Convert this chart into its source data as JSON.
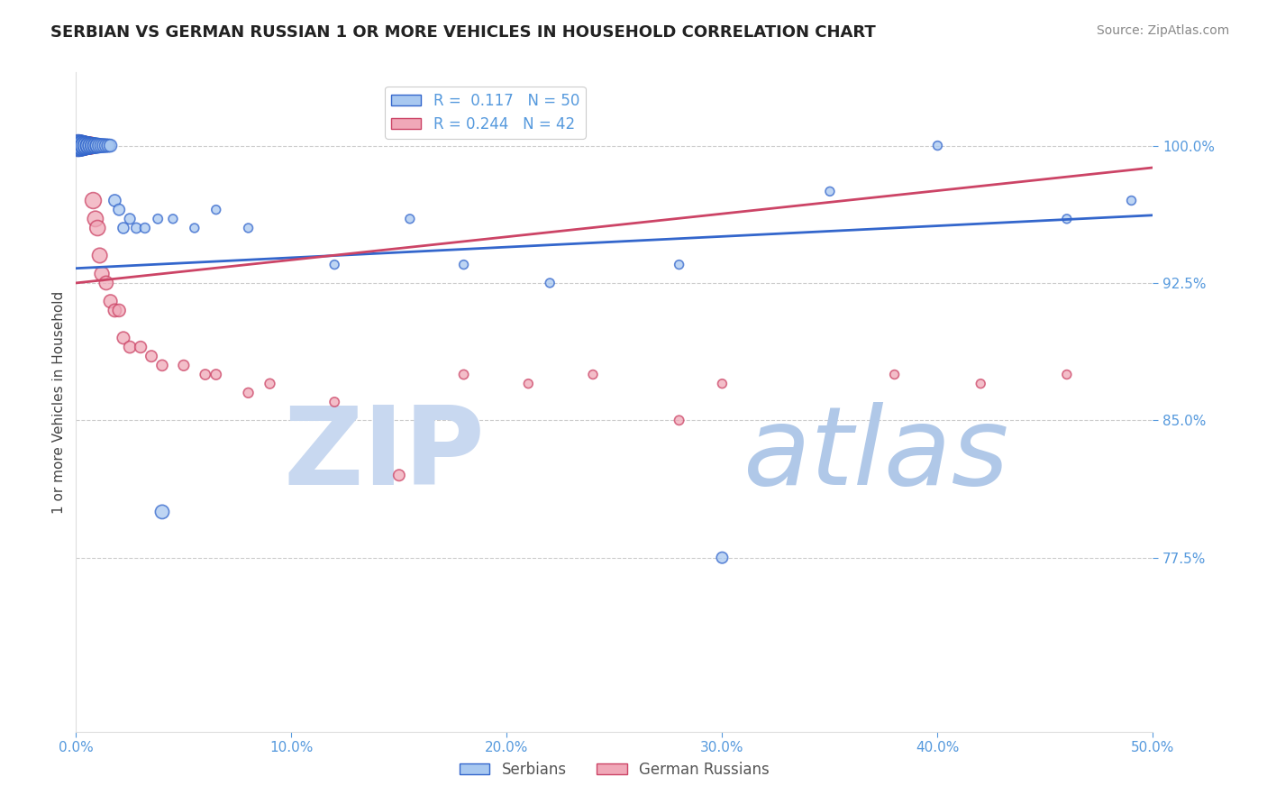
{
  "title": "SERBIAN VS GERMAN RUSSIAN 1 OR MORE VEHICLES IN HOUSEHOLD CORRELATION CHART",
  "source_text": "Source: ZipAtlas.com",
  "ylabel": "1 or more Vehicles in Household",
  "xlim": [
    0.0,
    0.5
  ],
  "ylim": [
    0.68,
    1.04
  ],
  "yticks": [
    0.775,
    0.85,
    0.925,
    1.0
  ],
  "ytick_labels": [
    "77.5%",
    "85.0%",
    "92.5%",
    "100.0%"
  ],
  "xticks": [
    0.0,
    0.1,
    0.2,
    0.3,
    0.4,
    0.5
  ],
  "xtick_labels": [
    "0.0%",
    "10.0%",
    "20.0%",
    "30.0%",
    "40.0%",
    "50.0%"
  ],
  "serbian_color": "#A8C8F0",
  "german_russian_color": "#F0A8B8",
  "trend_blue": "#3366CC",
  "trend_pink": "#CC4466",
  "background_color": "#FFFFFF",
  "grid_color": "#CCCCCC",
  "watermark_color": "#D8E8F8",
  "tick_color": "#5599DD",
  "title_fontsize": 13,
  "source_fontsize": 10,
  "label_fontsize": 11,
  "tick_fontsize": 11,
  "legend_fontsize": 12,
  "serbian_x": [
    0.001,
    0.002,
    0.002,
    0.003,
    0.003,
    0.003,
    0.004,
    0.004,
    0.004,
    0.005,
    0.005,
    0.006,
    0.006,
    0.006,
    0.007,
    0.007,
    0.008,
    0.008,
    0.009,
    0.009,
    0.01,
    0.01,
    0.011,
    0.012,
    0.013,
    0.014,
    0.015,
    0.016,
    0.018,
    0.02,
    0.022,
    0.025,
    0.028,
    0.032,
    0.038,
    0.045,
    0.055,
    0.065,
    0.08,
    0.12,
    0.155,
    0.18,
    0.22,
    0.28,
    0.35,
    0.4,
    0.46,
    0.49,
    0.3,
    0.04
  ],
  "serbian_y": [
    1.0,
    1.0,
    1.0,
    1.0,
    1.0,
    1.0,
    1.0,
    1.0,
    1.0,
    1.0,
    1.0,
    1.0,
    1.0,
    1.0,
    1.0,
    1.0,
    1.0,
    1.0,
    1.0,
    1.0,
    1.0,
    1.0,
    1.0,
    1.0,
    1.0,
    1.0,
    1.0,
    1.0,
    0.97,
    0.965,
    0.955,
    0.96,
    0.955,
    0.955,
    0.96,
    0.96,
    0.955,
    0.965,
    0.955,
    0.935,
    0.96,
    0.935,
    0.925,
    0.935,
    0.975,
    1.0,
    0.96,
    0.97,
    0.775,
    0.8
  ],
  "serbian_sizes": [
    300,
    280,
    260,
    250,
    240,
    230,
    220,
    210,
    200,
    200,
    190,
    180,
    175,
    170,
    165,
    160,
    155,
    150,
    145,
    140,
    135,
    130,
    125,
    120,
    115,
    110,
    105,
    100,
    90,
    80,
    75,
    70,
    65,
    60,
    55,
    50,
    50,
    50,
    50,
    50,
    50,
    50,
    50,
    50,
    50,
    50,
    50,
    50,
    80,
    120
  ],
  "german_russian_x": [
    0.001,
    0.002,
    0.002,
    0.003,
    0.003,
    0.004,
    0.004,
    0.005,
    0.005,
    0.006,
    0.006,
    0.007,
    0.007,
    0.008,
    0.009,
    0.01,
    0.011,
    0.012,
    0.014,
    0.016,
    0.018,
    0.02,
    0.022,
    0.025,
    0.03,
    0.035,
    0.04,
    0.06,
    0.08,
    0.12,
    0.15,
    0.18,
    0.21,
    0.24,
    0.3,
    0.38,
    0.42,
    0.46,
    0.05,
    0.065,
    0.09,
    0.28
  ],
  "german_russian_y": [
    1.0,
    1.0,
    1.0,
    1.0,
    1.0,
    1.0,
    1.0,
    1.0,
    1.0,
    1.0,
    1.0,
    1.0,
    1.0,
    0.97,
    0.96,
    0.955,
    0.94,
    0.93,
    0.925,
    0.915,
    0.91,
    0.91,
    0.895,
    0.89,
    0.89,
    0.885,
    0.88,
    0.875,
    0.865,
    0.86,
    0.82,
    0.875,
    0.87,
    0.875,
    0.87,
    0.875,
    0.87,
    0.875,
    0.88,
    0.875,
    0.87,
    0.85
  ],
  "german_russian_sizes": [
    280,
    260,
    250,
    240,
    230,
    220,
    210,
    200,
    190,
    185,
    180,
    175,
    170,
    165,
    155,
    150,
    140,
    130,
    120,
    110,
    105,
    100,
    95,
    90,
    85,
    80,
    75,
    65,
    60,
    55,
    80,
    55,
    50,
    50,
    50,
    50,
    50,
    50,
    70,
    65,
    60,
    55
  ],
  "blue_trend_x0": 0.0,
  "blue_trend_y0": 0.933,
  "blue_trend_x1": 0.5,
  "blue_trend_y1": 0.962,
  "pink_trend_x0": 0.0,
  "pink_trend_y0": 0.925,
  "pink_trend_x1": 0.5,
  "pink_trend_y1": 0.988
}
